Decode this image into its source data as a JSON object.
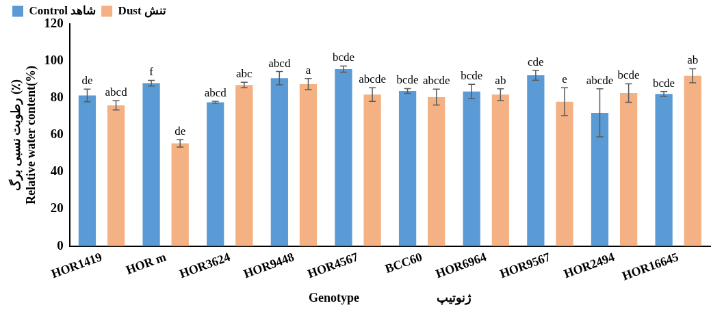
{
  "chart_data": {
    "type": "bar",
    "xlabel": "Genotype                         ژنوتیپ",
    "ylabel": "رطوبت نسبی برگ (٪)\nRelative water content(%)",
    "categories": [
      "HOR1419",
      "HOR m",
      "HOR3624",
      "HOR9448",
      "HOR4567",
      "BCC60",
      "HOR6964",
      "HOR9567",
      "HOR2494",
      "HOR16645"
    ],
    "series": [
      {
        "name": "Control شاهد",
        "color": "#5b9bd5",
        "values": [
          81.4,
          88,
          77.7,
          90.7,
          95.6,
          83.8,
          83.5,
          92.3,
          72,
          82.2
        ],
        "errors": [
          3.4,
          1.5,
          0.5,
          3.6,
          1.7,
          1.3,
          3.9,
          2.7,
          13,
          1.3
        ],
        "value_labels": [
          "de",
          "f",
          "abcd",
          "abcd",
          "bcde",
          "bcde",
          "bcde",
          "cde",
          "abcde",
          "bcde"
        ]
      },
      {
        "name": "Dust تنش",
        "color": "#f4b183",
        "values": [
          76,
          55.5,
          87,
          87.5,
          81.8,
          80.5,
          81.8,
          78,
          82.7,
          92
        ],
        "errors": [
          2.5,
          2,
          1.5,
          3,
          3.7,
          4.3,
          3.2,
          7.5,
          5,
          3.8
        ],
        "value_labels": [
          "abcd",
          "de",
          "abc",
          "a",
          "abcde",
          "abcde",
          "ab",
          "e",
          "bcde",
          "ab"
        ]
      }
    ],
    "ylim": [
      0,
      120
    ],
    "yticks": [
      0,
      20,
      40,
      60,
      80,
      100,
      120
    ],
    "grid": false,
    "legend": "top left"
  }
}
